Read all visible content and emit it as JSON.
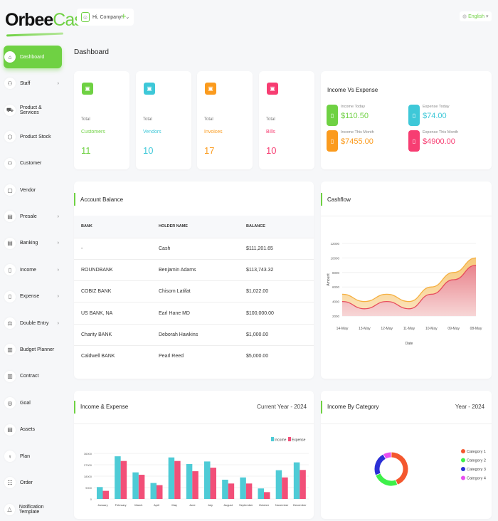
{
  "brand": {
    "name_bold": "Orbee",
    "name_light": "Cash"
  },
  "header": {
    "company": "Hi, Company!",
    "add_icon": "plus-icon",
    "language": "English"
  },
  "sidebar": {
    "items": [
      {
        "label": "Dashboard",
        "icon": "home-icon",
        "glyph": "⌂",
        "chevron": false,
        "active": true
      },
      {
        "label": "Staff",
        "icon": "users-icon",
        "glyph": "⚇",
        "chevron": true
      },
      {
        "label": "Product & Services",
        "icon": "cart-icon",
        "glyph": "⛟",
        "chevron": false
      },
      {
        "label": "Product Stock",
        "icon": "box-icon",
        "glyph": "⬡",
        "chevron": false
      },
      {
        "label": "Customer",
        "icon": "user-icon",
        "glyph": "⚇",
        "chevron": false
      },
      {
        "label": "Vendor",
        "icon": "note-icon",
        "glyph": "▢",
        "chevron": false
      },
      {
        "label": "Presale",
        "icon": "building-icon",
        "glyph": "▤",
        "chevron": true
      },
      {
        "label": "Banking",
        "icon": "bank-icon",
        "glyph": "▤",
        "chevron": true
      },
      {
        "label": "Income",
        "icon": "file-icon",
        "glyph": "▯",
        "chevron": true
      },
      {
        "label": "Expense",
        "icon": "receipt-icon",
        "glyph": "▯",
        "chevron": true
      },
      {
        "label": "Double Entry",
        "icon": "balance-icon",
        "glyph": "⚖",
        "chevron": true
      },
      {
        "label": "Budget Planner",
        "icon": "planner-icon",
        "glyph": "▥",
        "chevron": false
      },
      {
        "label": "Contract",
        "icon": "contract-icon",
        "glyph": "▥",
        "chevron": false
      },
      {
        "label": "Goal",
        "icon": "target-icon",
        "glyph": "◎",
        "chevron": false
      },
      {
        "label": "Assets",
        "icon": "calculator-icon",
        "glyph": "▤",
        "chevron": false
      },
      {
        "label": "Plan",
        "icon": "bulb-icon",
        "glyph": "♀",
        "chevron": false
      },
      {
        "label": "Order",
        "icon": "order-icon",
        "glyph": "☷",
        "chevron": false
      },
      {
        "label": "Notification Template",
        "icon": "bell-icon",
        "glyph": "△",
        "chevron": false
      }
    ]
  },
  "page": {
    "title": "Dashboard"
  },
  "stats": [
    {
      "total": "Total",
      "name": "Customers",
      "value": "11",
      "color": "#6fd143",
      "icon": "users-icon"
    },
    {
      "total": "Total",
      "name": "Vendors",
      "value": "10",
      "color": "#3ec8d8",
      "icon": "note-icon"
    },
    {
      "total": "Total",
      "name": "Invoices",
      "value": "17",
      "color": "#fb9b1e",
      "icon": "invoice-icon"
    },
    {
      "total": "Total",
      "name": "Bills",
      "value": "10",
      "color": "#f73d72",
      "icon": "bill-icon"
    }
  ],
  "income_vs_expense": {
    "title": "Income Vs Expense",
    "items": [
      {
        "label": "Income Today",
        "amount": "$110.50",
        "color": "#6fd143"
      },
      {
        "label": "Expense Today",
        "amount": "$74.00",
        "color": "#3ec8d8"
      },
      {
        "label": "Income This Month",
        "amount": "$7455.00",
        "color": "#fb9b1e"
      },
      {
        "label": "Expense This Month",
        "amount": "$4900.00",
        "color": "#f73d72"
      }
    ]
  },
  "account_balance": {
    "title": "Account Balance",
    "columns": [
      "BANK",
      "HOLDER NAME",
      "BALANCE"
    ],
    "rows": [
      [
        "-",
        "Cash",
        "$111,201.65"
      ],
      [
        "ROUNDBANK",
        "Benjamin Adams",
        "$113,743.32"
      ],
      [
        "COBIZ BANK",
        "Chisom Latifat",
        "$1,022.00"
      ],
      [
        "US BANK, NA",
        "Earl Hane MD",
        "$100,000.00"
      ],
      [
        "Charity BANK",
        "Deborah Hawkins",
        "$1,000.00"
      ],
      [
        "Caldwell BANK",
        "Pearl Reed",
        "$5,000.00"
      ]
    ]
  },
  "cashflow": {
    "title": "Cashflow"
  },
  "income_expense": {
    "title": "Income & Expense",
    "subtitle": "Current Year - 2024"
  },
  "income_by_category": {
    "title": "Income By Category",
    "subtitle": "Year - 2024"
  },
  "chart_data": [
    {
      "type": "area",
      "x": [
        "14-May",
        "13-May",
        "12-May",
        "11-May",
        "10-May",
        "09-May",
        "08-May"
      ],
      "xlabel": "Date",
      "ylabel": "Amount",
      "ylim": [
        2000,
        12000
      ],
      "yticks": [
        2000,
        4000,
        6000,
        8000,
        10000,
        12000
      ],
      "series": [
        {
          "values": [
            5000,
            4000,
            5000,
            4000,
            6000,
            8000,
            10000
          ],
          "color": "#f5b041"
        },
        {
          "values": [
            4000,
            3000,
            4000,
            3000,
            5000,
            7000,
            9000
          ],
          "color": "#e74c5c"
        }
      ]
    },
    {
      "type": "bar",
      "categories": [
        "January",
        "February",
        "March",
        "April",
        "May",
        "June",
        "July",
        "August",
        "September",
        "October",
        "November",
        "December"
      ],
      "ylim": [
        0,
        36000
      ],
      "yticks": [
        0,
        9000,
        18000,
        27000,
        36000
      ],
      "legend": "top-right",
      "series": [
        {
          "name": "Income",
          "color": "#4ecbd6",
          "values": [
            9400,
            33700,
            21000,
            12600,
            32800,
            27600,
            29600,
            15200,
            17000,
            8300,
            22700,
            28900
          ]
        },
        {
          "name": "Expense",
          "color": "#f24f78",
          "values": [
            6400,
            30000,
            19100,
            10900,
            30000,
            21900,
            24700,
            12200,
            12200,
            5400,
            17000,
            22900
          ]
        }
      ]
    },
    {
      "type": "pie",
      "donut": true,
      "legend": "right",
      "series": [
        {
          "name": "Category 1",
          "value": 44,
          "color": "#f4572e"
        },
        {
          "name": "Category 2",
          "value": 25,
          "color": "#3ef04a"
        },
        {
          "name": "Category 3",
          "value": 23,
          "color": "#2b2fd6"
        },
        {
          "name": "Category 4",
          "value": 8,
          "color": "#e84ef0"
        }
      ]
    }
  ]
}
